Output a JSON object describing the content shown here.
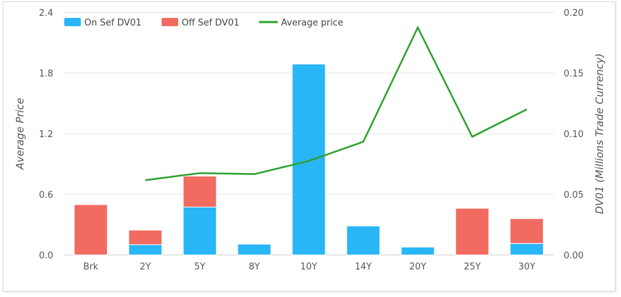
{
  "chart_data": {
    "type": "bar",
    "stacked": true,
    "categories": [
      "Brk",
      "2Y",
      "5Y",
      "8Y",
      "10Y",
      "14Y",
      "20Y",
      "25Y",
      "30Y"
    ],
    "series": [
      {
        "name": "On Sef DV01",
        "type": "bar",
        "axis": "right",
        "color": "#29b6f6",
        "values": [
          0.0,
          0.0085,
          0.0395,
          0.009,
          0.1575,
          0.024,
          0.0065,
          0.0,
          0.0095
        ]
      },
      {
        "name": "Off Sef DV01",
        "type": "bar",
        "axis": "right",
        "color": "#f26b61",
        "values": [
          0.0415,
          0.012,
          0.0255,
          0.0005,
          0.0005,
          0.0005,
          0.0005,
          0.0385,
          0.0205
        ]
      },
      {
        "name": "Average price",
        "type": "line",
        "axis": "left",
        "color": "#2ca02c",
        "values": [
          null,
          0.74,
          0.81,
          0.8,
          0.93,
          1.12,
          2.25,
          1.17,
          1.44
        ]
      }
    ],
    "left_axis": {
      "title": "Average Price",
      "ylim": [
        0,
        2.4
      ],
      "ticks": [
        "0.0",
        "0.6",
        "1.2",
        "1.8",
        "2.4"
      ],
      "tick_values": [
        0,
        0.6,
        1.2,
        1.8,
        2.4
      ]
    },
    "right_axis": {
      "title": "DV01 (Millions Trade Currency)",
      "ylim": [
        0,
        0.2
      ],
      "ticks": [
        "0.00",
        "0.05",
        "0.10",
        "0.15",
        "0.20"
      ],
      "tick_values": [
        0,
        0.05,
        0.1,
        0.15,
        0.2
      ]
    },
    "legend": {
      "position": "top-left"
    },
    "grid": true
  }
}
